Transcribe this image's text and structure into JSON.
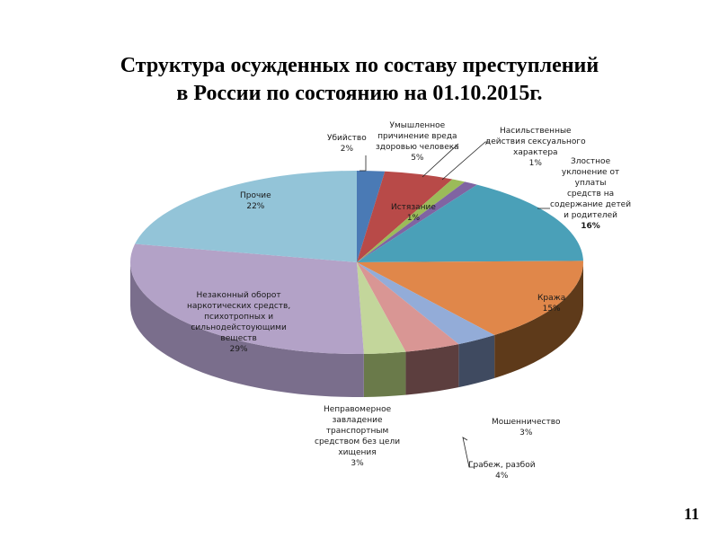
{
  "slide": {
    "title_line1": "Структура осужденных по составу преступлений",
    "title_line2": "в России по состоянию на 01.10.2015г.",
    "page_number": "11"
  },
  "chart_data": {
    "type": "pie",
    "style": "3d-exploded-none",
    "title": "Структура осужденных по составу преступлений в России по состоянию на 01.10.2015г.",
    "start_angle": "12 o'clock",
    "direction": "clockwise",
    "legend": "none (data labels with leader lines)",
    "categories": [
      "Убийство",
      "Умышленное причинение вреда здоровью человека",
      "Истязание",
      "Насильственные действия сексуального характера",
      "Злостное уклонение от уплаты средств на содержание детей и родителей",
      "Кража",
      "Мошенничество",
      "Грабеж, разбой",
      "Неправомерное завладение транспортным средством без цели хищения",
      "Незаконный оборот наркотических средств, психотропных и сильнодействующими веществ",
      "Прочие"
    ],
    "values": [
      2,
      5,
      1,
      1,
      16,
      15,
      3,
      4,
      3,
      29,
      22
    ],
    "unit": "%",
    "colors": [
      "#4a7ab5",
      "#b84a48",
      "#9bbb59",
      "#8064a2",
      "#4aa0b8",
      "#e0874a",
      "#93acd8",
      "#d99694",
      "#c3d69b",
      "#b3a2c7",
      "#93c4d8"
    ],
    "side_colors": [
      "#2e4d72",
      "#6e2e2c",
      "#5d7035",
      "#4d3c61",
      "#2c6070",
      "#5e3a1a",
      "#3f4a60",
      "#5c3e3e",
      "#6a7a4a",
      "#7a6e8c",
      "#5d8494"
    ]
  },
  "labels": {
    "l0": {
      "text": "Убийство",
      "pct": "2%"
    },
    "l1": {
      "text1": "Умышленное",
      "text2": "причинение вреда",
      "text3": "здоровью человека",
      "pct": "5%"
    },
    "l2": {
      "text": "Истязание",
      "pct": "1%"
    },
    "l3": {
      "text1": "Насильственные",
      "text2": "действия сексуального",
      "text3": "характера",
      "pct": "1%"
    },
    "l4": {
      "text1": "Злостное",
      "text2": "уклонение от",
      "text3": "уплаты",
      "text4": "средств на",
      "text5": "содержание детей",
      "text6": "и родителей",
      "pct": "16%"
    },
    "l5": {
      "text": "Кража",
      "pct": "15%"
    },
    "l6": {
      "text": "Мошенничество",
      "pct": "3%"
    },
    "l7": {
      "text": "Грабеж, разбой",
      "pct": "4%"
    },
    "l8": {
      "text1": "Неправомерное",
      "text2": "завладение",
      "text3": "транспортным",
      "text4": "средством без цели",
      "text5": "хищения",
      "pct": "3%"
    },
    "l9": {
      "text1": "Незаконный оборот",
      "text2": "наркотических средств,",
      "text3": "психотропных и",
      "text4": "сильнодейстоующими",
      "text5": "веществ",
      "pct": "29%"
    },
    "l10": {
      "text": "Прочие",
      "pct": "22%"
    }
  }
}
